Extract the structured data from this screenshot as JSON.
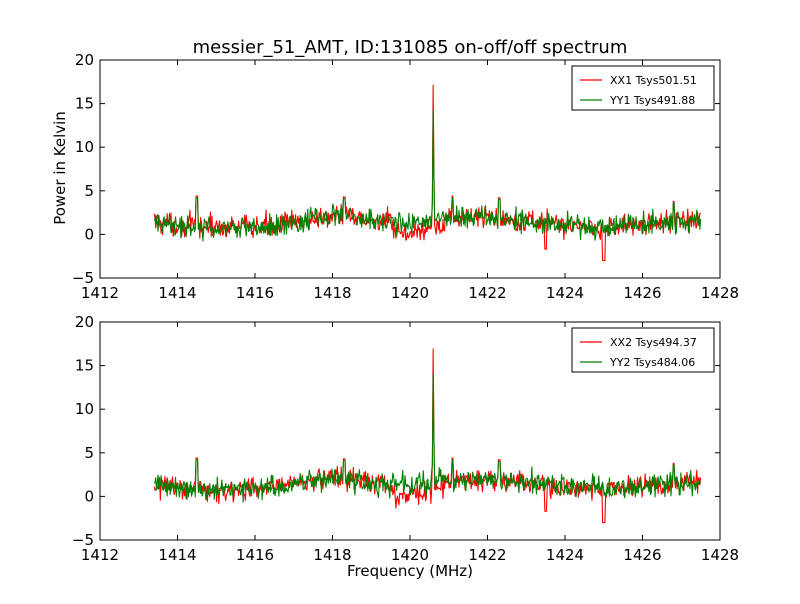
{
  "title": "messier_51_AMT, ID:131085 on-off/off spectrum",
  "ylabel": "Power in Kelvin",
  "xlabel": "Frequency (MHz)",
  "colors": {
    "xx": "#ff0000",
    "yy": "#008000"
  },
  "chart_data": [
    {
      "type": "line",
      "title": "messier_51_AMT, ID:131085 on-off/off spectrum",
      "xlabel": "",
      "ylabel": "Power in Kelvin",
      "xlim": [
        1412,
        1428
      ],
      "ylim": [
        -5,
        20
      ],
      "xticks": [
        1412,
        1414,
        1416,
        1418,
        1420,
        1422,
        1424,
        1426,
        1428
      ],
      "yticks": [
        -5,
        0,
        5,
        10,
        15,
        20
      ],
      "x_range": [
        1413.4,
        1427.5
      ],
      "peak": {
        "x": 1420.6,
        "values": {
          "XX1 Tsys501.51": 16.1,
          "YY1 Tsys491.88": 13.0
        }
      },
      "legend_position": "upper right",
      "series": [
        {
          "name": "XX1 Tsys501.51",
          "color": "#ff0000"
        },
        {
          "name": "YY1 Tsys491.88",
          "color": "#008000"
        }
      ],
      "profile": [
        [
          1413.4,
          1.5
        ],
        [
          1414.0,
          1.0
        ],
        [
          1415.0,
          0.8
        ],
        [
          1416.0,
          0.9
        ],
        [
          1417.0,
          1.3
        ],
        [
          1418.0,
          2.2
        ],
        [
          1419.0,
          1.6
        ],
        [
          1420.0,
          1.2
        ],
        [
          1420.5,
          1.8
        ],
        [
          1421.0,
          1.9
        ],
        [
          1422.0,
          2.0
        ],
        [
          1423.0,
          1.6
        ],
        [
          1424.0,
          1.1
        ],
        [
          1425.0,
          0.8
        ],
        [
          1426.0,
          1.1
        ],
        [
          1427.0,
          1.5
        ],
        [
          1427.5,
          1.6
        ]
      ],
      "noise_amplitude": 1.6,
      "dips": [
        [
          1423.5,
          -1.7
        ],
        [
          1425.0,
          -3.0
        ]
      ],
      "spikes": [
        [
          1414.5,
          4.4
        ],
        [
          1418.3,
          4.3
        ],
        [
          1421.1,
          4.4
        ],
        [
          1422.3,
          4.2
        ],
        [
          1426.8,
          3.8
        ]
      ]
    },
    {
      "type": "line",
      "title": "",
      "xlabel": "Frequency (MHz)",
      "ylabel": "",
      "xlim": [
        1412,
        1428
      ],
      "ylim": [
        -5,
        20
      ],
      "xticks": [
        1412,
        1414,
        1416,
        1418,
        1420,
        1422,
        1424,
        1426,
        1428
      ],
      "yticks": [
        -5,
        0,
        5,
        10,
        15,
        20
      ],
      "x_range": [
        1413.4,
        1427.5
      ],
      "peak": {
        "x": 1420.6,
        "values": {
          "XX2 Tsys494.37": 15.9,
          "YY2 Tsys484.06": 12.8
        }
      },
      "legend_position": "upper right",
      "series": [
        {
          "name": "XX2 Tsys494.37",
          "color": "#ff0000"
        },
        {
          "name": "YY2 Tsys484.06",
          "color": "#008000"
        }
      ],
      "profile": [
        [
          1413.4,
          1.5
        ],
        [
          1414.0,
          1.0
        ],
        [
          1415.0,
          0.8
        ],
        [
          1416.0,
          0.9
        ],
        [
          1417.0,
          1.3
        ],
        [
          1418.0,
          2.2
        ],
        [
          1419.0,
          1.6
        ],
        [
          1420.0,
          1.2
        ],
        [
          1420.5,
          1.8
        ],
        [
          1421.0,
          1.9
        ],
        [
          1422.0,
          2.0
        ],
        [
          1423.0,
          1.6
        ],
        [
          1424.0,
          1.1
        ],
        [
          1425.0,
          0.8
        ],
        [
          1426.0,
          1.1
        ],
        [
          1427.0,
          1.5
        ],
        [
          1427.5,
          1.6
        ]
      ],
      "noise_amplitude": 1.6,
      "dips": [
        [
          1423.5,
          -1.7
        ],
        [
          1425.0,
          -3.0
        ]
      ],
      "spikes": [
        [
          1414.5,
          4.4
        ],
        [
          1418.3,
          4.3
        ],
        [
          1421.1,
          4.4
        ],
        [
          1422.3,
          4.2
        ],
        [
          1426.8,
          3.8
        ]
      ]
    }
  ]
}
